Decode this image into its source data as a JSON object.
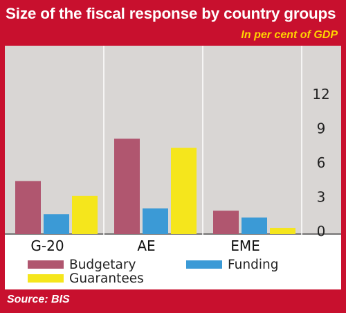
{
  "header": {
    "title": "Size of the fiscal response by country groups",
    "subtitle": "In per cent of GDP"
  },
  "footer": {
    "source": "Source: BIS"
  },
  "colors": {
    "frame": "#c8102e",
    "plot_background": "#d9d6d4",
    "subtitle_text": "#ffd400"
  },
  "chart_data": {
    "type": "bar",
    "title": "Size of the fiscal response by country groups",
    "subtitle": "In per cent of GDP",
    "categories": [
      "G-20",
      "AE",
      "EME"
    ],
    "series": [
      {
        "name": "Budgetary",
        "color": "#b0566f",
        "values": [
          4.4,
          8.1,
          1.8
        ]
      },
      {
        "name": "Funding",
        "color": "#3b9ad6",
        "values": [
          1.5,
          2.0,
          1.2
        ]
      },
      {
        "name": "Guarantees",
        "color": "#f5e61c",
        "values": [
          3.1,
          7.3,
          0.3
        ]
      }
    ],
    "yticks": [
      0,
      3,
      6,
      9,
      12
    ],
    "ylim": [
      0,
      13
    ],
    "y_axis_side": "right",
    "grid": false,
    "legend_position": "bottom"
  }
}
